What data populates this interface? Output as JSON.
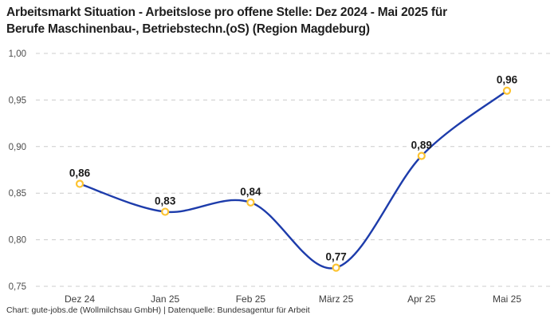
{
  "header": {
    "title_line1": "Arbeitsmarkt Situation - Arbeitslose pro offene Stelle: Dez 2024 - Mai 2025 für",
    "title_line2": "Berufe Maschinenbau-, Betriebstechn.(oS) (Region Magdeburg)"
  },
  "footer": {
    "credit": "Chart: gute-jobs.de (Wollmilchsau GmbH) | Datenquelle: Bundesagentur für Arbeit"
  },
  "chart_data": {
    "type": "line",
    "title": "Arbeitsmarkt Situation - Arbeitslose pro offene Stelle: Dez 2024 - Mai 2025 für Berufe Maschinenbau-, Betriebstechn.(oS) (Region Magdeburg)",
    "categories": [
      "Dez 24",
      "Jan 25",
      "Feb 25",
      "März 25",
      "Apr 25",
      "Mai 25"
    ],
    "values": [
      0.86,
      0.83,
      0.84,
      0.77,
      0.89,
      0.96
    ],
    "value_labels": [
      "0,86",
      "0,83",
      "0,84",
      "0,77",
      "0,89",
      "0,96"
    ],
    "y_ticks": [
      {
        "value": 1.0,
        "label": "1,00"
      },
      {
        "value": 0.95,
        "label": "0,95"
      },
      {
        "value": 0.9,
        "label": "0,90"
      },
      {
        "value": 0.85,
        "label": "0,85"
      },
      {
        "value": 0.8,
        "label": "0,80"
      },
      {
        "value": 0.75,
        "label": "0,75"
      }
    ],
    "ylim": [
      0.75,
      1.0
    ],
    "xlabel": "",
    "ylabel": "",
    "grid": "horizontal-dashed",
    "legend": "none",
    "smooth": true,
    "colors": {
      "line": "#1d3cab",
      "marker_ring": "#fdc432",
      "marker_fill": "#ffffff",
      "grid": "#cccccc",
      "value_label": "#1a1a1a",
      "axis_text": "#4d4d4d",
      "title": "#1f1f1f",
      "background": "#ffffff"
    }
  }
}
